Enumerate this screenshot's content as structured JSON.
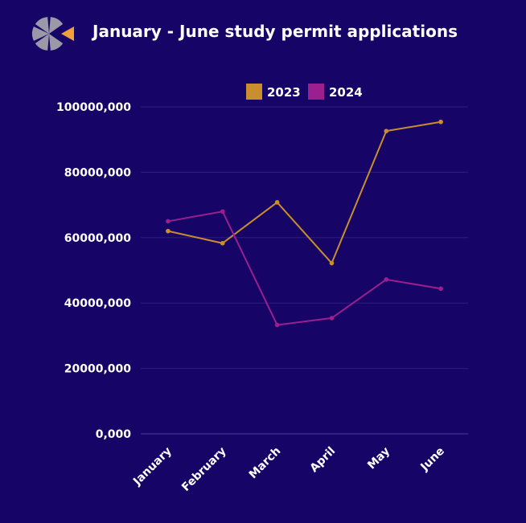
{
  "colors": {
    "background": "#160567",
    "gridline": "#2e1f7a",
    "axis_line": "#4a3d8f",
    "text": "#ffffff",
    "logo_grey": "#9b98a8",
    "logo_orange": "#f2a03a"
  },
  "logo": {
    "icon": "asterisk-logo-icon"
  },
  "chart_data": {
    "type": "line",
    "title": "January - June study permit applications",
    "xlabel": "",
    "ylabel": "",
    "categories": [
      "January",
      "February",
      "March",
      "April",
      "May",
      "June"
    ],
    "ylim": [
      0,
      100000000
    ],
    "yticks": [
      0,
      20000000,
      40000000,
      60000000,
      80000000,
      100000000
    ],
    "ytick_labels": [
      "0,000",
      "20000,000",
      "40000,000",
      "60000,000",
      "80000,000",
      "100000,000"
    ],
    "grid": true,
    "legend_position": "top-center",
    "series": [
      {
        "name": "2023",
        "color": "#c98e2e",
        "values": [
          62000000,
          58300000,
          70800000,
          52200000,
          92600000,
          95400000
        ]
      },
      {
        "name": "2024",
        "color": "#9b1f8e",
        "values": [
          65000000,
          68000000,
          33300000,
          35400000,
          47200000,
          44400000
        ]
      }
    ]
  }
}
